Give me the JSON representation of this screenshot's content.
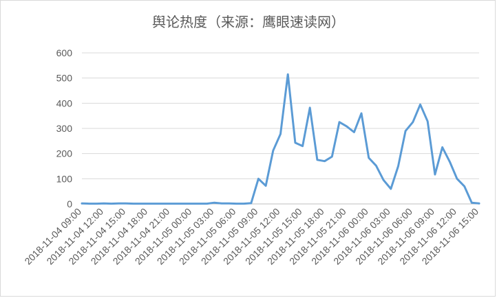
{
  "chart_data": {
    "type": "line",
    "title": "舆论热度（来源：鹰眼速读网）",
    "xlabel": "",
    "ylabel": "",
    "ylim": [
      0,
      600
    ],
    "yticks": [
      0,
      100,
      200,
      300,
      400,
      500,
      600
    ],
    "grid": true,
    "legend": "none",
    "color": "#5b9bd5",
    "x": [
      "2018-11-04 09:00",
      "2018-11-04 10:00",
      "2018-11-04 11:00",
      "2018-11-04 12:00",
      "2018-11-04 13:00",
      "2018-11-04 14:00",
      "2018-11-04 15:00",
      "2018-11-04 16:00",
      "2018-11-04 17:00",
      "2018-11-04 18:00",
      "2018-11-04 19:00",
      "2018-11-04 20:00",
      "2018-11-04 21:00",
      "2018-11-04 22:00",
      "2018-11-04 23:00",
      "2018-11-05 00:00",
      "2018-11-05 01:00",
      "2018-11-05 02:00",
      "2018-11-05 03:00",
      "2018-11-05 04:00",
      "2018-11-05 05:00",
      "2018-11-05 06:00",
      "2018-11-05 07:00",
      "2018-11-05 08:00",
      "2018-11-05 09:00",
      "2018-11-05 10:00",
      "2018-11-05 11:00",
      "2018-11-05 12:00",
      "2018-11-05 13:00",
      "2018-11-05 14:00",
      "2018-11-05 15:00",
      "2018-11-05 16:00",
      "2018-11-05 17:00",
      "2018-11-05 18:00",
      "2018-11-05 19:00",
      "2018-11-05 20:00",
      "2018-11-05 21:00",
      "2018-11-05 22:00",
      "2018-11-05 23:00",
      "2018-11-06 00:00",
      "2018-11-06 01:00",
      "2018-11-06 02:00",
      "2018-11-06 03:00",
      "2018-11-06 04:00",
      "2018-11-06 05:00",
      "2018-11-06 06:00",
      "2018-11-06 07:00",
      "2018-11-06 08:00",
      "2018-11-06 09:00",
      "2018-11-06 10:00",
      "2018-11-06 11:00",
      "2018-11-06 12:00",
      "2018-11-06 13:00",
      "2018-11-06 14:00",
      "2018-11-06 15:00"
    ],
    "values": [
      2,
      1,
      1,
      2,
      1,
      2,
      2,
      1,
      1,
      1,
      1,
      1,
      1,
      1,
      1,
      1,
      1,
      1,
      5,
      2,
      2,
      1,
      1,
      3,
      100,
      72,
      212,
      278,
      515,
      243,
      230,
      382,
      175,
      170,
      188,
      325,
      308,
      285,
      360,
      183,
      152,
      95,
      60,
      150,
      290,
      325,
      395,
      328,
      117,
      225,
      168,
      100,
      70,
      5,
      2
    ],
    "tick_labels": [
      "2018-11-04 09:00",
      "2018-11-04 12:00",
      "2018-11-04 15:00",
      "2018-11-04 18:00",
      "2018-11-04 21:00",
      "2018-11-05 00:00",
      "2018-11-05 03:00",
      "2018-11-05 06:00",
      "2018-11-05 09:00",
      "2018-11-05 12:00",
      "2018-11-05 15:00",
      "2018-11-05 18:00",
      "2018-11-05 21:00",
      "2018-11-06 00:00",
      "2018-11-06 03:00",
      "2018-11-06 06:00",
      "2018-11-06 09:00",
      "2018-11-06 12:00",
      "2018-11-06 15:00"
    ]
  }
}
